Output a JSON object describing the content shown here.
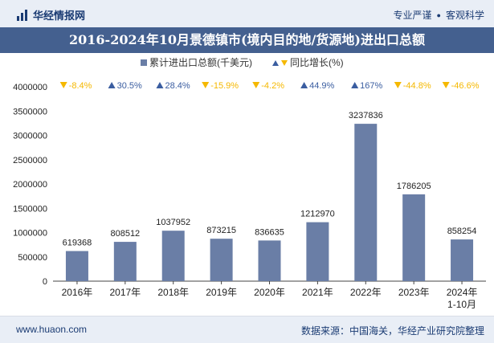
{
  "header": {
    "brand": "华经情报网",
    "tagline_left": "专业严谨",
    "tagline_right": "客观科学"
  },
  "footer": {
    "website": "www.huaon.com",
    "source": "数据来源：中国海关，华经产业研究院整理"
  },
  "colors": {
    "bar": "#6a7ea6",
    "up": "#3a5da0",
    "down": "#f5b800",
    "title_bg": "#44608f",
    "band_bg": "#e9eef6"
  },
  "chart_data": {
    "type": "bar",
    "title": "2016-2024年10月景德镇市(境内目的地/货源地)进出口总额",
    "categories": [
      "2016年",
      "2017年",
      "2018年",
      "2019年",
      "2020年",
      "2021年",
      "2022年",
      "2023年",
      "2024年\n1-10月"
    ],
    "series": [
      {
        "name": "累计进出口总额(千美元)",
        "values": [
          619368,
          808512,
          1037952,
          873215,
          836635,
          1212970,
          3237836,
          1786205,
          858254
        ]
      },
      {
        "name": "同比增长(%)",
        "values": [
          -8.4,
          30.5,
          28.4,
          -15.9,
          -4.2,
          44.9,
          167,
          -44.8,
          -46.6
        ]
      }
    ],
    "yoy_labels": [
      "-8.4%",
      "30.5%",
      "28.4%",
      "-15.9%",
      "-4.2%",
      "44.9%",
      "167%",
      "-44.8%",
      "-46.6%"
    ],
    "ylim": [
      0,
      4000000
    ],
    "yticks": [
      0,
      500000,
      1000000,
      1500000,
      2000000,
      2500000,
      3000000,
      3500000,
      4000000
    ],
    "legend_position": "top-center",
    "grid": false
  }
}
